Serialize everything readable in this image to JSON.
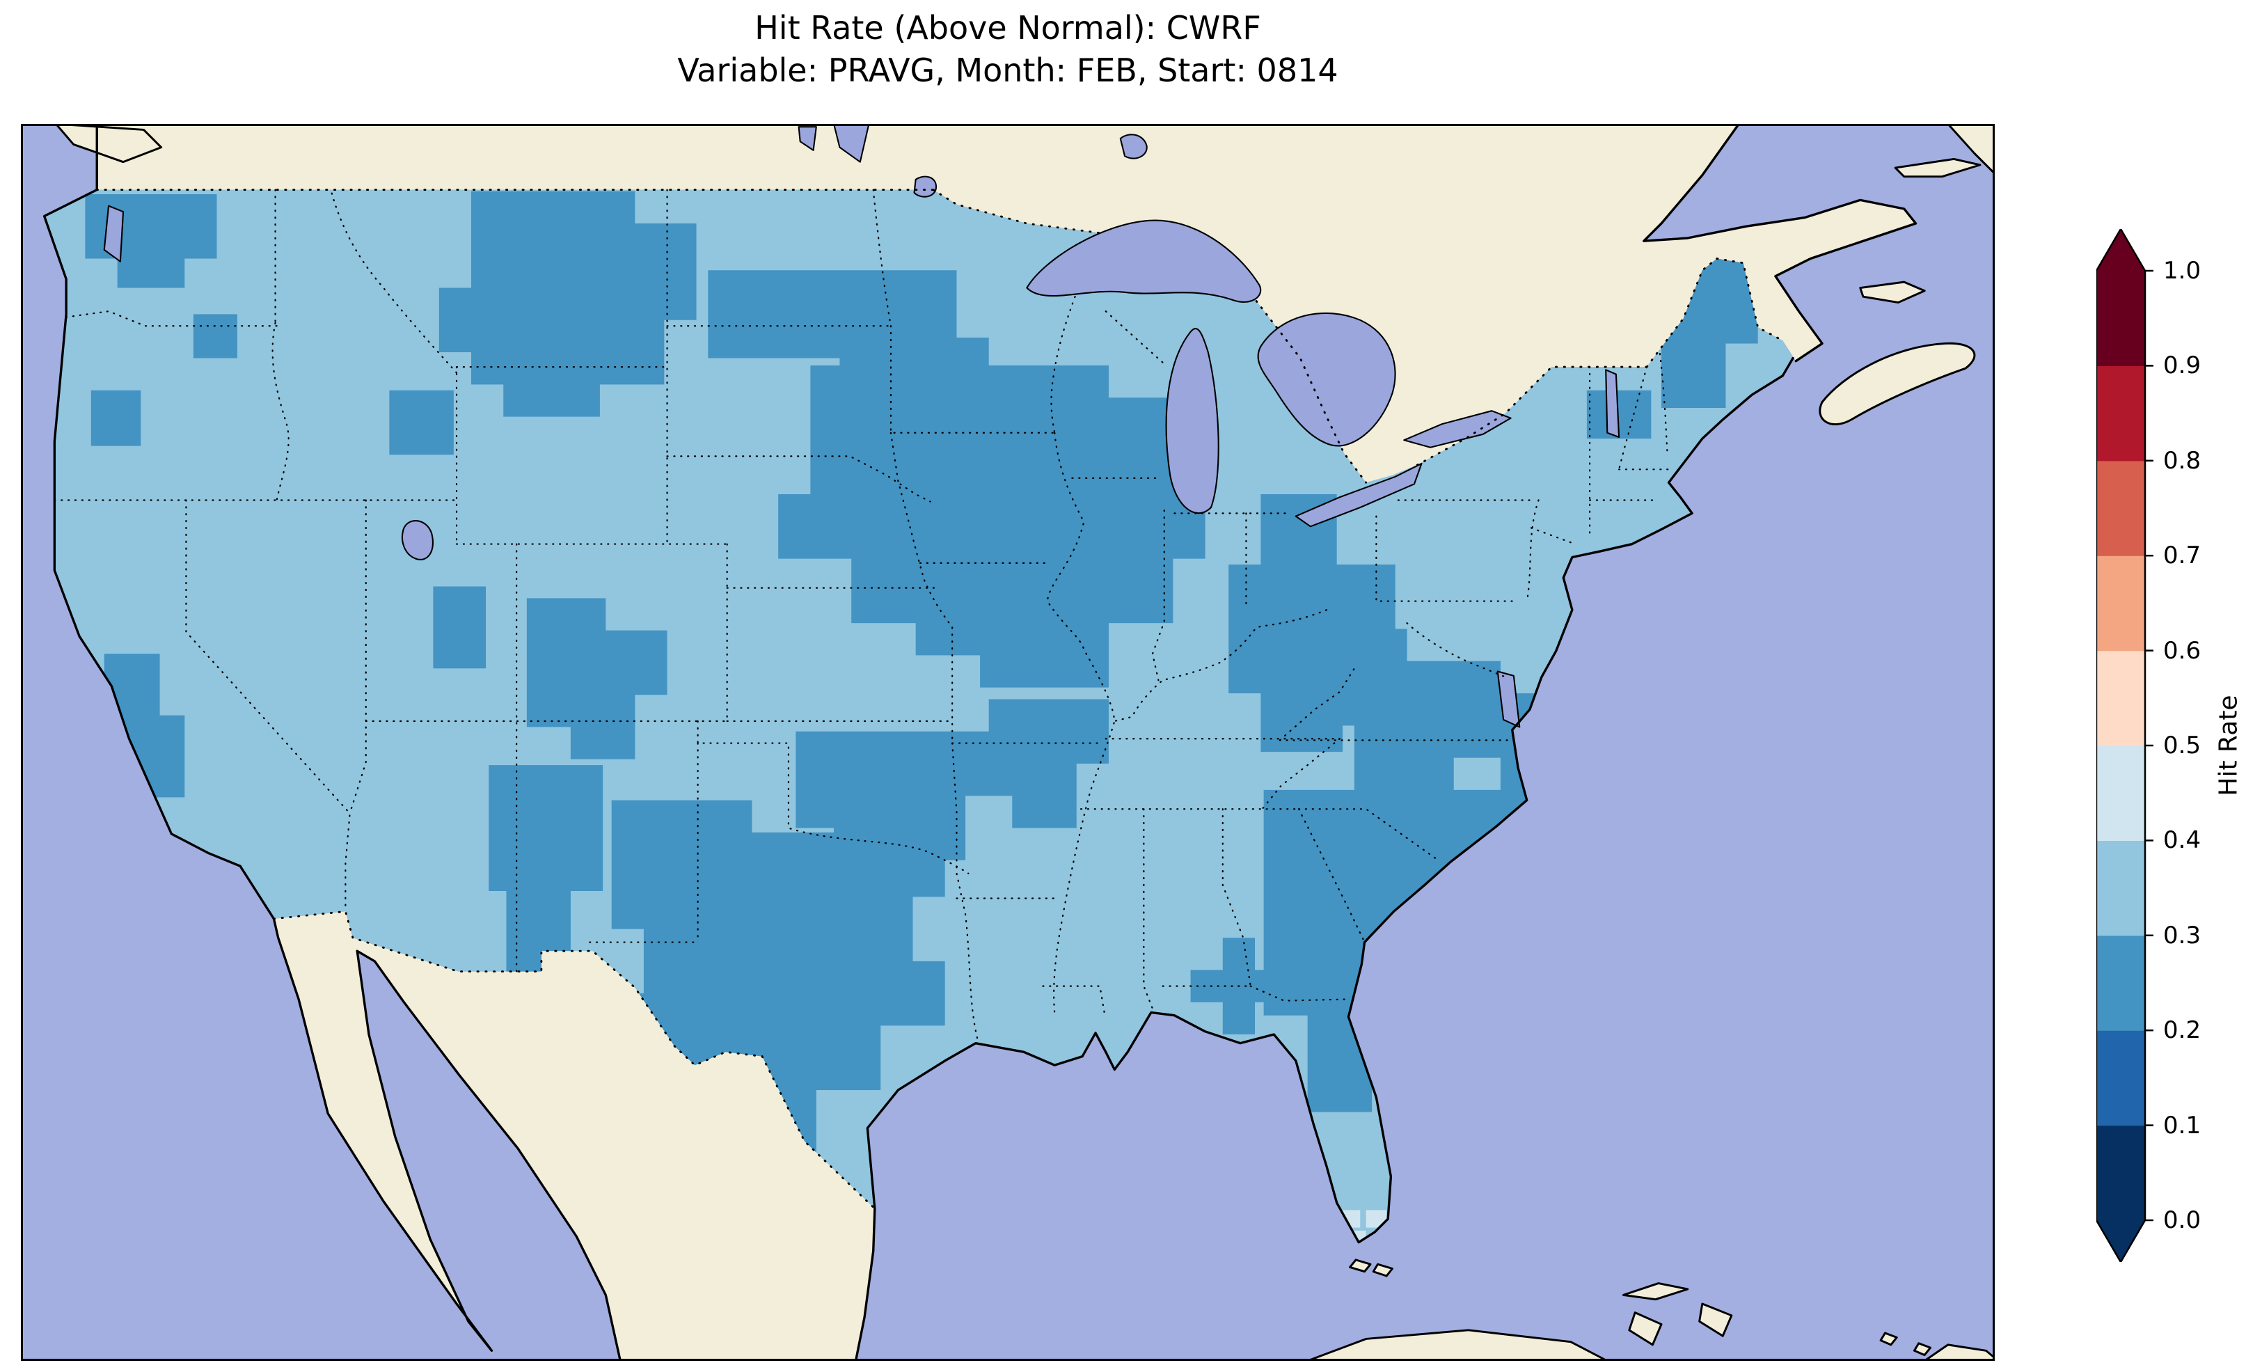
{
  "figure": {
    "title_line1": "Hit Rate (Above Normal): CWRF",
    "title_line2": "Variable: PRAVG, Month: FEB, Start: 0814"
  },
  "colorbar": {
    "label": "Hit Rate",
    "ticks": [
      "1.0",
      "0.9",
      "0.8",
      "0.7",
      "0.6",
      "0.5",
      "0.4",
      "0.3",
      "0.2",
      "0.1",
      "0.0"
    ],
    "segments_bottom_to_top": [
      "#053061",
      "#2166ac",
      "#4393c3",
      "#92c5de",
      "#d1e5f0",
      "#fddbc7",
      "#f4a582",
      "#d6604d",
      "#b2182b",
      "#67001f"
    ],
    "extend_under": "#053061",
    "extend_over": "#67001f"
  },
  "colors": {
    "ocean": "#a3aee1",
    "land": "#f2eed9",
    "lake": "#9aa6dc",
    "bin02": "#4393c3",
    "bin03": "#92c5de",
    "bin04": "#d1e5f0"
  },
  "chart_data": {
    "type": "heatmap",
    "title": "Hit Rate (Above Normal): CWRF",
    "subtitle": "Variable: PRAVG, Month: FEB, Start: 0814",
    "colorbar_label": "Hit Rate",
    "value_range": [
      0.0,
      1.0
    ],
    "bin_width": 0.1,
    "colorbar_extends_both_ends": true,
    "dominant_bin": [
      0.3,
      0.4
    ],
    "regions_by_bin": {
      "0.2_to_0.3": [
        "western Washington",
        "northern Oregon coast spot",
        "northern Rockies (western Montana / Idaho / Wyoming)",
        "northeast Nevada / southern Idaho",
        "central Utah",
        "central Colorado into northern New Mexico",
        "southern New Mexico",
        "Dakotas-to-Minnesota band",
        "Upper Midwest (Wisconsin / Iowa / Illinois / northern Missouri)",
        "southern Michigan",
        "Ohio / Indiana / Kentucky",
        "Missouri-Arkansas border area",
        "Oklahoma / southern Kansas",
        "central and west Texas / south Texas",
        "eastern Kentucky / West Virginia / Virginia",
        "coastal Carolinas",
        "Georgia / Alabama",
        "small Mississippi cluster",
        "central California coast",
        "northern New England (Maine / New Hampshire / Vermont)",
        "eastern New York spots"
      ],
      "0.3_to_0.4": [
        "most of the remaining contiguous United States",
        "Great Plains",
        "Nevada / Great Basin",
        "Arizona",
        "Gulf Coast",
        "Florida"
      ],
      "0.4_to_0.5": [
        "a few isolated cells near the southern tip of Florida"
      ]
    }
  }
}
